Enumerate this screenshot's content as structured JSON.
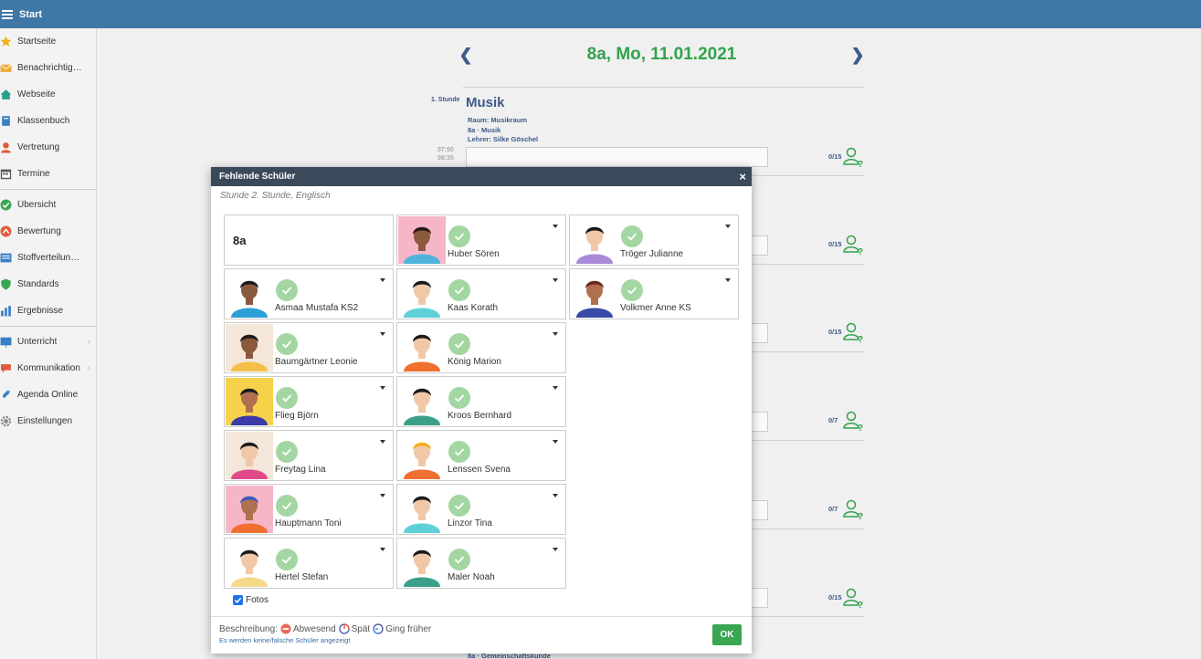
{
  "topbar": {
    "title": "Start"
  },
  "sidebar": {
    "group1": [
      {
        "label": "Startseite",
        "icon": "star-icon",
        "color": "#f2b01e"
      },
      {
        "label": "Benachrichtigu...",
        "icon": "envelope-icon",
        "color": "#f0a830"
      },
      {
        "label": "Webseite",
        "icon": "home-icon",
        "color": "#2e9e8f"
      },
      {
        "label": "Klassenbuch",
        "icon": "book-icon",
        "color": "#3a7fc4"
      },
      {
        "label": "Vertretung",
        "icon": "user-swap-icon",
        "color": "#e05a3a"
      },
      {
        "label": "Termine",
        "icon": "calendar-icon",
        "color": "#555555"
      }
    ],
    "group2": [
      {
        "label": "Übersicht",
        "icon": "check-circle-icon",
        "color": "#3aa652"
      },
      {
        "label": "Bewertung",
        "icon": "rating-icon",
        "color": "#e05a3a"
      },
      {
        "label": "Stoffverteilung...",
        "icon": "list-icon",
        "color": "#3a7fc4"
      },
      {
        "label": "Standards",
        "icon": "shield-icon",
        "color": "#3aa652"
      },
      {
        "label": "Ergebnisse",
        "icon": "bar-chart-icon",
        "color": "#3a7fc4"
      }
    ],
    "group3": [
      {
        "label": "Unterricht",
        "icon": "board-icon",
        "color": "#3a7fc4"
      },
      {
        "label": "Kommunikation",
        "icon": "chat-icon",
        "color": "#e05a3a"
      },
      {
        "label": "Agenda Online",
        "icon": "paperclip-icon",
        "color": "#3a7fc4"
      },
      {
        "label": "Einstellungen",
        "icon": "gear-icon",
        "color": "#888888"
      }
    ]
  },
  "main": {
    "date_title": "8a, Mo, 11.01.2021",
    "lesson": {
      "number": "1. Stunde",
      "title": "Musik",
      "room": "Raum:  Musikraum",
      "class_subject": "8a · Musik",
      "teacher": "Lehrer:   Silke Göschel",
      "time_start": "07:50",
      "time_end": "08:35"
    },
    "counts": [
      "0/15",
      "0/15",
      "0/15",
      "0/7",
      "0/7",
      "0/15"
    ],
    "bottom_text": "8a · Gemeinschaftskunde"
  },
  "dialog": {
    "title": "Fehlende Schüler",
    "subtitle": "Stunde 2. Stunde, Englisch",
    "class_name": "8a",
    "students": [
      {
        "name": "Huber Sören",
        "bg": "#f6b6c8",
        "skin": "#8a5a3c",
        "hair": "#2a1a14",
        "shirt": "#4fb3d9"
      },
      {
        "name": "Tröger Julianne",
        "bg": "#ffffff",
        "skin": "#f0c8a8",
        "hair": "#1a1a1a",
        "shirt": "#a98ad8"
      },
      {
        "name": "Asmaa Mustafa KS2",
        "bg": "#ffffff",
        "skin": "#8a5a3c",
        "hair": "#1a1a1a",
        "shirt": "#2ea0d6"
      },
      {
        "name": "Kaas Korath",
        "bg": "#ffffff",
        "skin": "#f0c8a8",
        "hair": "#1a1a1a",
        "shirt": "#5fd0d8"
      },
      {
        "name": "Volkmer Anne KS",
        "bg": "#ffffff",
        "skin": "#b07050",
        "hair": "#6a2a1a",
        "shirt": "#3a4aa8"
      },
      {
        "name": "Baumgärtner Leonie",
        "bg": "#f4e6d8",
        "skin": "#8a5a3c",
        "hair": "#1a1a1a",
        "shirt": "#f2c04a"
      },
      {
        "name": "König Marion",
        "bg": "#ffffff",
        "skin": "#f0c8a8",
        "hair": "#1a1a1a",
        "shirt": "#f07030"
      },
      {
        "name": "Flieg Björn",
        "bg": "#f5d24a",
        "skin": "#b07050",
        "hair": "#1a1a1a",
        "shirt": "#3a3aa8"
      },
      {
        "name": "Kroos Bernhard",
        "bg": "#ffffff",
        "skin": "#f0c8a8",
        "hair": "#1a1a1a",
        "shirt": "#3aa08a"
      },
      {
        "name": "Freytag Lina",
        "bg": "#f4e6d8",
        "skin": "#f0c8a8",
        "hair": "#1a1a1a",
        "shirt": "#e04a8a"
      },
      {
        "name": "Lenssen Svena",
        "bg": "#ffffff",
        "skin": "#f0c8a8",
        "hair": "#f2b01e",
        "shirt": "#f07030"
      },
      {
        "name": "Hauptmann Toni",
        "bg": "#f6b6c8",
        "skin": "#b07050",
        "hair": "#3a5ab8",
        "shirt": "#f07030"
      },
      {
        "name": "Linzor Tina",
        "bg": "#ffffff",
        "skin": "#f0c8a8",
        "hair": "#1a1a1a",
        "shirt": "#5fd0d8"
      },
      {
        "name": "Hertel Stefan",
        "bg": "#ffffff",
        "skin": "#f0c8a8",
        "hair": "#1a1a1a",
        "shirt": "#f5d88a"
      },
      {
        "name": "Maler Noah",
        "bg": "#ffffff",
        "skin": "#f0c8a8",
        "hair": "#1a1a1a",
        "shirt": "#3aa08a"
      }
    ],
    "fotos_label": "Fotos",
    "legend": {
      "prefix": "Beschreibung:",
      "absent": "Abwesend",
      "late": "Spät",
      "left_early": "Ging früher"
    },
    "legend_link": "Es werden keine/falsche Schüler angezeigt",
    "ok_label": "OK",
    "close_glyph": "×"
  },
  "colors": {
    "topbar": "#3f77a6",
    "accent_green": "#31a24c",
    "navy": "#3d5a8a"
  }
}
